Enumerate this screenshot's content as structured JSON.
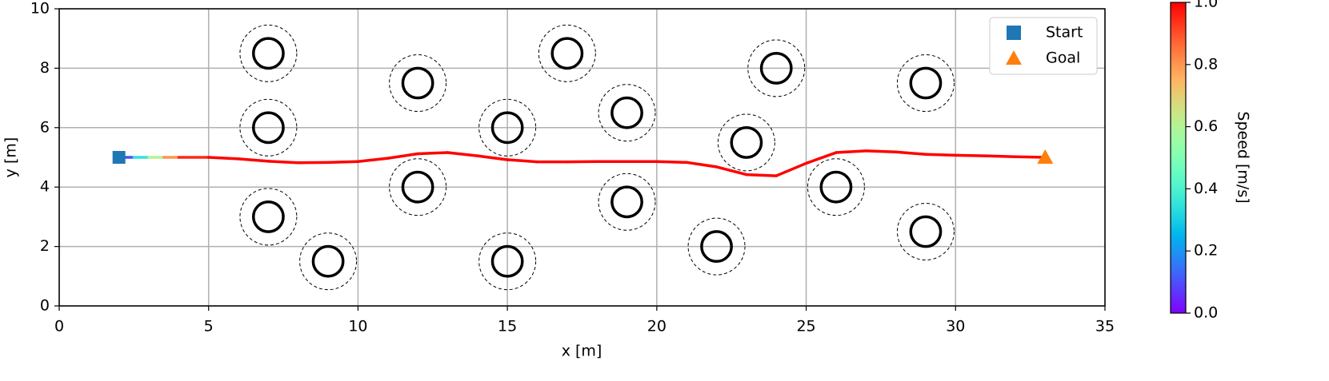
{
  "chart_data": {
    "type": "path-map",
    "xlabel": "x [m]",
    "ylabel": "y [m]",
    "xlim": [
      0,
      35
    ],
    "xticks": [
      0,
      5,
      10,
      15,
      20,
      25,
      30,
      35
    ],
    "ylim": [
      0,
      10
    ],
    "yticks": [
      0,
      2,
      4,
      6,
      8,
      10
    ],
    "grid": true,
    "obstacles": {
      "x": [
        7,
        7,
        7,
        9,
        12,
        12,
        15,
        15,
        17,
        19,
        19,
        22,
        23,
        24,
        26,
        29,
        29
      ],
      "y": [
        8.5,
        6,
        3,
        1.5,
        7.5,
        4,
        6,
        1.5,
        8.5,
        6.5,
        3.5,
        2,
        5.5,
        8,
        4,
        7.5,
        2.5
      ],
      "radius": 0.5,
      "safety_radius": 0.95
    },
    "path": {
      "x": [
        2,
        2.5,
        3,
        3.5,
        4,
        5,
        6,
        7,
        8,
        9,
        10,
        11,
        12,
        13,
        14,
        15,
        16,
        17,
        18,
        19,
        20,
        21,
        22,
        23,
        24,
        25,
        26,
        27,
        28,
        29,
        30,
        31,
        32,
        33
      ],
      "y": [
        5,
        5,
        5,
        5,
        5,
        5,
        4.95,
        4.87,
        4.82,
        4.83,
        4.86,
        4.97,
        5.12,
        5.16,
        5.05,
        4.92,
        4.85,
        4.85,
        4.86,
        4.86,
        4.86,
        4.83,
        4.68,
        4.42,
        4.38,
        4.8,
        5.16,
        5.22,
        5.18,
        5.1,
        5.07,
        5.05,
        5.02,
        5.0
      ],
      "speed": [
        0.1,
        0.35,
        0.6,
        0.8,
        0.95,
        1,
        1,
        1,
        1,
        1,
        1,
        1,
        1,
        1,
        1,
        1,
        1,
        1,
        1,
        1,
        1,
        1,
        1,
        1,
        1,
        1,
        1,
        1,
        1,
        1,
        1,
        1,
        1,
        1
      ]
    },
    "series": [
      {
        "name": "Start",
        "color": "#1f77b4",
        "x": [
          2
        ],
        "values": [
          5
        ]
      },
      {
        "name": "Goal",
        "color": "#ff7f0e",
        "x": [
          33
        ],
        "values": [
          5
        ]
      }
    ],
    "legend": "upper right",
    "colorbar": {
      "label": "Speed [m/s]",
      "colormap": "rainbow",
      "lim": [
        0,
        1
      ],
      "ticks": [
        {
          "value": 0,
          "label": "0.0"
        },
        {
          "value": 0.2,
          "label": "0.2"
        },
        {
          "value": 0.4,
          "label": "0.4"
        },
        {
          "value": 0.6,
          "label": "0.6"
        },
        {
          "value": 0.8,
          "label": "0.8"
        },
        {
          "value": 1,
          "label": "1.0"
        }
      ]
    }
  }
}
